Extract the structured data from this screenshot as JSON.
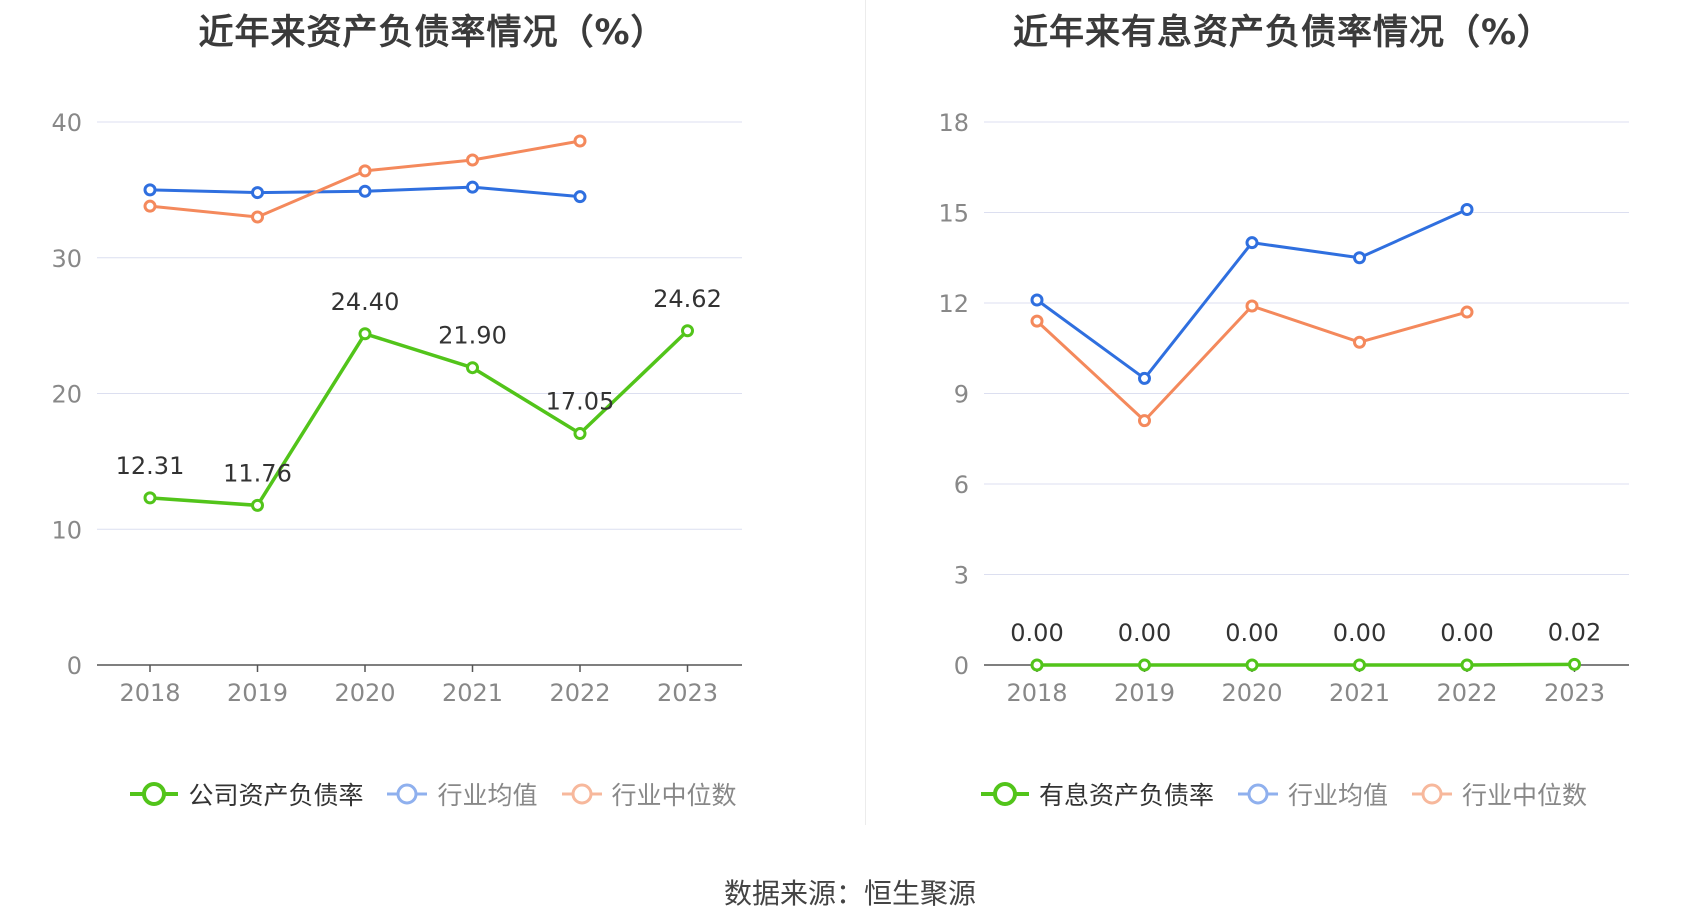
{
  "source_label": "数据来源：恒生聚源",
  "colors": {
    "company": "#52c41a",
    "industry_avg": "#2f6fdf",
    "industry_median": "#f4895c",
    "grid": "#dcdff0",
    "axis": "#555555",
    "tick_text": "#888888"
  },
  "chart_data": [
    {
      "type": "line",
      "title": "近年来资产负债率情况（%）",
      "x": [
        "2018",
        "2019",
        "2020",
        "2021",
        "2022",
        "2023"
      ],
      "ylim": [
        0,
        40
      ],
      "yticks": [
        0,
        10,
        20,
        30,
        40
      ],
      "grid": true,
      "legend_position": "bottom",
      "series": [
        {
          "name": "公司资产负债率",
          "color": "#52c41a",
          "values": [
            12.31,
            11.76,
            24.4,
            21.9,
            17.05,
            24.62
          ],
          "labels": [
            "12.31",
            "11.76",
            "24.40",
            "21.90",
            "17.05",
            "24.62"
          ]
        },
        {
          "name": "行业均值",
          "color": "#2f6fdf",
          "values": [
            35.0,
            34.8,
            34.9,
            35.2,
            34.5,
            null
          ]
        },
        {
          "name": "行业中位数",
          "color": "#f4895c",
          "values": [
            33.8,
            33.0,
            36.4,
            37.2,
            38.6,
            null
          ]
        }
      ]
    },
    {
      "type": "line",
      "title": "近年来有息资产负债率情况（%）",
      "x": [
        "2018",
        "2019",
        "2020",
        "2021",
        "2022",
        "2023"
      ],
      "ylim": [
        0,
        18
      ],
      "yticks": [
        0,
        3,
        6,
        9,
        12,
        15,
        18
      ],
      "grid": true,
      "legend_position": "bottom",
      "series": [
        {
          "name": "有息资产负债率",
          "color": "#52c41a",
          "values": [
            0.0,
            0.0,
            0.0,
            0.0,
            0.0,
            0.02
          ],
          "labels": [
            "0.00",
            "0.00",
            "0.00",
            "0.00",
            "0.00",
            "0.02"
          ]
        },
        {
          "name": "行业均值",
          "color": "#2f6fdf",
          "values": [
            12.1,
            9.5,
            14.0,
            13.5,
            15.1,
            null
          ]
        },
        {
          "name": "行业中位数",
          "color": "#f4895c",
          "values": [
            11.4,
            8.1,
            11.9,
            10.7,
            11.7,
            null
          ]
        }
      ]
    }
  ]
}
